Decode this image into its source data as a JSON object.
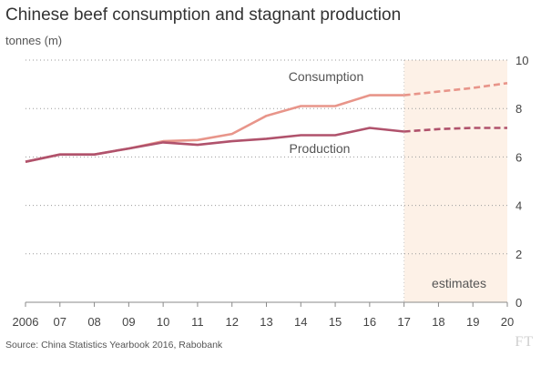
{
  "header": {
    "title": "Chinese beef consumption and stagnant production",
    "subtitle": "tonnes (m)"
  },
  "footer": {
    "source": "Source: China Statistics Yearbook 2016, Rabobank",
    "logo_text": "FT"
  },
  "chart_data": {
    "type": "line",
    "x": [
      2006,
      2007,
      2008,
      2009,
      2010,
      2011,
      2012,
      2013,
      2014,
      2015,
      2016,
      2017,
      2018,
      2019,
      2020
    ],
    "x_tick_labels": [
      "2006",
      "07",
      "08",
      "09",
      "10",
      "11",
      "12",
      "13",
      "14",
      "15",
      "16",
      "17",
      "18",
      "19",
      "20"
    ],
    "y_tick_labels": [
      "0",
      "2",
      "4",
      "6",
      "8",
      "10"
    ],
    "ylim": [
      0,
      10
    ],
    "series": [
      {
        "name": "Consumption",
        "color": "#e8958a",
        "actual": [
          [
            2006,
            5.8
          ],
          [
            2007,
            6.1
          ],
          [
            2008,
            6.1
          ],
          [
            2009,
            6.35
          ],
          [
            2010,
            6.65
          ],
          [
            2011,
            6.7
          ],
          [
            2012,
            6.95
          ],
          [
            2013,
            7.7
          ],
          [
            2014,
            8.1
          ],
          [
            2015,
            8.1
          ],
          [
            2016,
            8.55
          ],
          [
            2017,
            8.55
          ]
        ],
        "estimate": [
          [
            2017,
            8.55
          ],
          [
            2018,
            8.7
          ],
          [
            2019,
            8.85
          ],
          [
            2020,
            9.05
          ]
        ]
      },
      {
        "name": "Production",
        "color": "#b0526c",
        "actual": [
          [
            2006,
            5.8
          ],
          [
            2007,
            6.1
          ],
          [
            2008,
            6.1
          ],
          [
            2009,
            6.35
          ],
          [
            2010,
            6.6
          ],
          [
            2011,
            6.5
          ],
          [
            2012,
            6.65
          ],
          [
            2013,
            6.75
          ],
          [
            2014,
            6.9
          ],
          [
            2015,
            6.9
          ],
          [
            2016,
            7.2
          ],
          [
            2017,
            7.05
          ]
        ],
        "estimate": [
          [
            2017,
            7.05
          ],
          [
            2018,
            7.15
          ],
          [
            2019,
            7.2
          ],
          [
            2020,
            7.2
          ]
        ]
      }
    ],
    "estimates_region": {
      "from": 2017,
      "to": 2020,
      "label": "estimates",
      "color": "#fdf1e7"
    },
    "grid": true,
    "legend": "inline labels"
  }
}
